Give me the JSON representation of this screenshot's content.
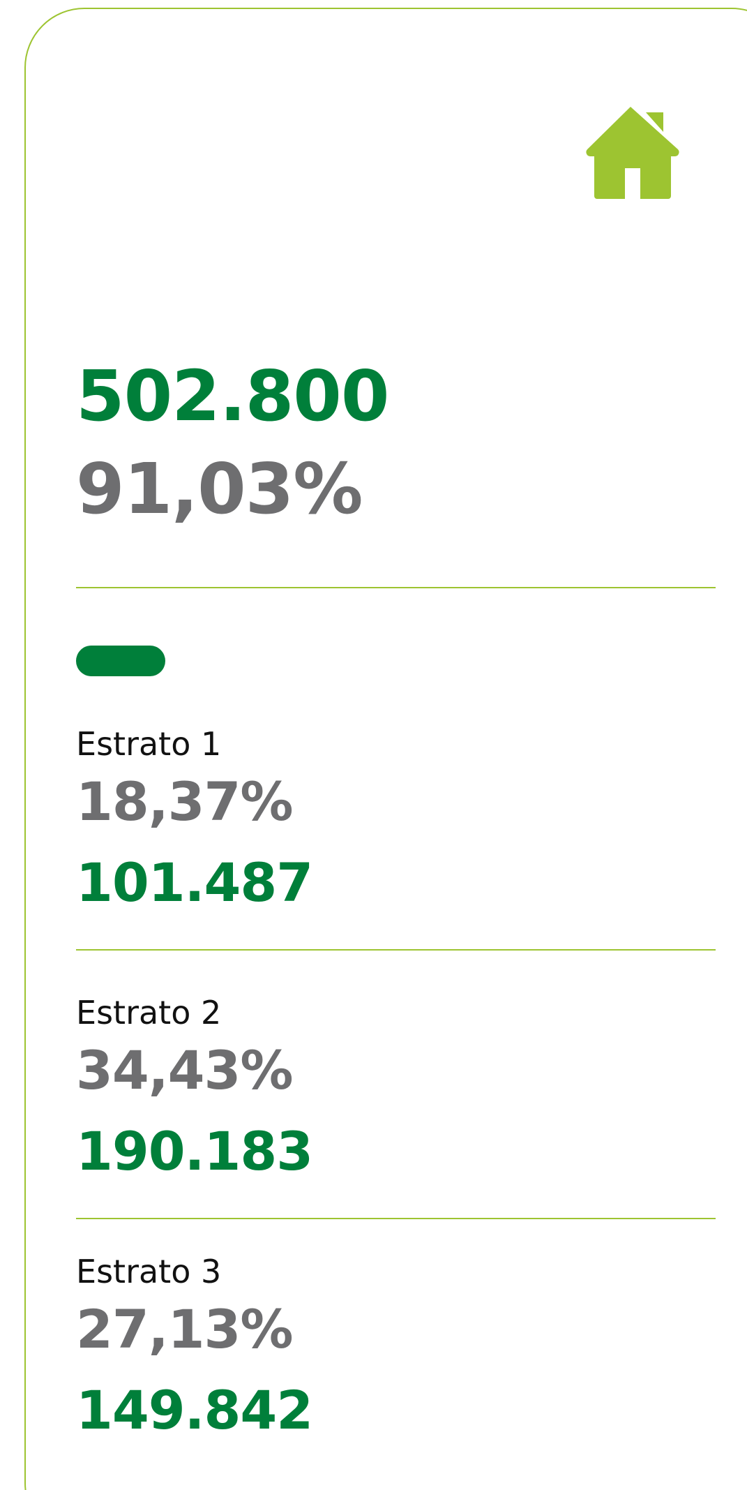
{
  "summary": {
    "total": "502.800",
    "percent": "91,03%"
  },
  "strata": [
    {
      "label": "Estrato 1",
      "percent": "18,37%",
      "count": "101.487"
    },
    {
      "label": "Estrato 2",
      "percent": "34,43%",
      "count": "190.183"
    },
    {
      "label": "Estrato 3",
      "percent": "27,13%",
      "count": "149.842"
    }
  ]
}
